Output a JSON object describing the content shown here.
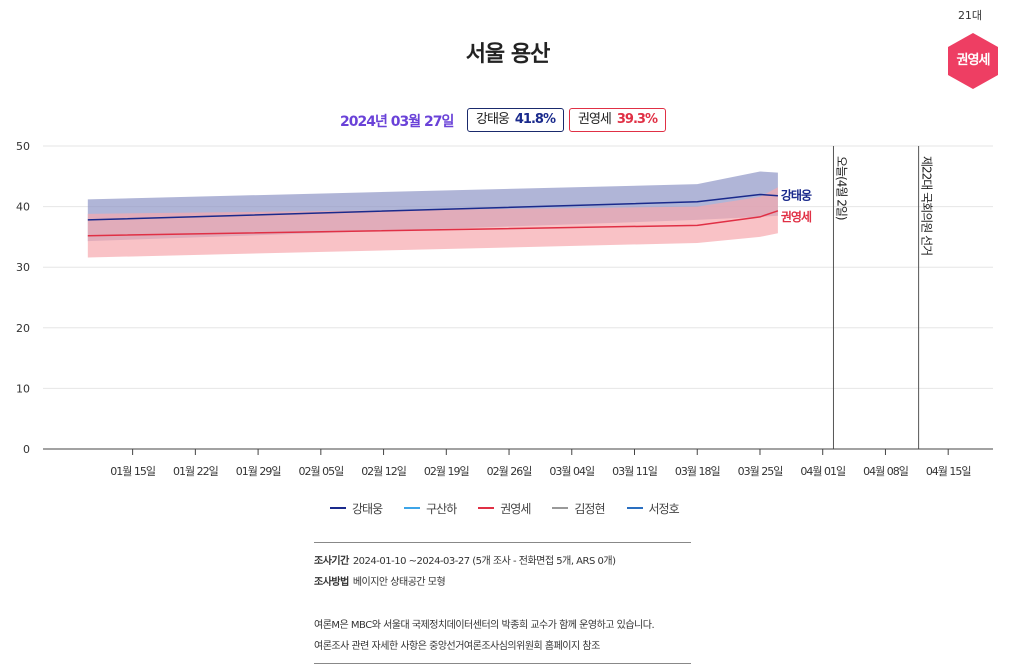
{
  "title": "서울 용산",
  "badge": {
    "term": "21대",
    "name": "권영세",
    "color": "#ee3e63"
  },
  "header": {
    "date": "2024년 03월 27일",
    "candidates": [
      {
        "name": "강태웅",
        "pct": "41.8%",
        "color": "#1a2a8c"
      },
      {
        "name": "권영세",
        "pct": "39.3%",
        "color": "#e03045"
      }
    ]
  },
  "chart_data": {
    "type": "line",
    "title": "서울 용산",
    "xlabel": "",
    "ylabel": "",
    "ylim": [
      0,
      50
    ],
    "yticks": [
      0,
      10,
      20,
      30,
      40,
      50
    ],
    "xlim_days": [
      -5,
      101
    ],
    "x_ticks": [
      {
        "day": 5,
        "label": "01월 15일"
      },
      {
        "day": 12,
        "label": "01월 22일"
      },
      {
        "day": 19,
        "label": "01월 29일"
      },
      {
        "day": 26,
        "label": "02월 05일"
      },
      {
        "day": 33,
        "label": "02월 12일"
      },
      {
        "day": 40,
        "label": "02월 19일"
      },
      {
        "day": 47,
        "label": "02월 26일"
      },
      {
        "day": 54,
        "label": "03월 04일"
      },
      {
        "day": 61,
        "label": "03월 11일"
      },
      {
        "day": 68,
        "label": "03월 18일"
      },
      {
        "day": 75,
        "label": "03월 25일"
      },
      {
        "day": 82,
        "label": "04월 01일"
      },
      {
        "day": 89,
        "label": "04월 08일"
      },
      {
        "day": 96,
        "label": "04월 15일"
      }
    ],
    "vertical_markers": [
      {
        "day": 83.2,
        "label": "오늘(4월 2일)"
      },
      {
        "day": 92.7,
        "label": "제22대 국회의원 선거"
      }
    ],
    "series": [
      {
        "name": "강태웅",
        "color": "#1a2a8c",
        "band_color": "#8f96c6",
        "x": [
          0,
          68,
          75,
          77
        ],
        "values": [
          37.8,
          40.8,
          42.0,
          41.8
        ],
        "upper": [
          41.2,
          43.7,
          45.8,
          45.6
        ],
        "lower": [
          34.3,
          37.8,
          38.3,
          38.5
        ]
      },
      {
        "name": "권영세",
        "color": "#e03045",
        "band_color": "#f7a8ae",
        "x": [
          0,
          68,
          75,
          77
        ],
        "values": [
          35.2,
          36.9,
          38.3,
          39.3
        ],
        "upper": [
          38.8,
          40.0,
          41.6,
          43.2
        ],
        "lower": [
          31.6,
          34.0,
          35.0,
          35.6
        ]
      }
    ],
    "end_labels": [
      {
        "series": "강태웅",
        "text": "강태웅"
      },
      {
        "series": "권영세",
        "text": "권영세"
      }
    ],
    "legend": [
      {
        "name": "강태웅",
        "color": "#1a2a8c"
      },
      {
        "name": "구산하",
        "color": "#3da5e8"
      },
      {
        "name": "권영세",
        "color": "#e03045"
      },
      {
        "name": "김정현",
        "color": "#999999"
      },
      {
        "name": "서정호",
        "color": "#2a6fc0"
      }
    ]
  },
  "footer": {
    "period_label": "조사기간",
    "period_value": "2024-01-10 ~2024-03-27 (5개 조사 - 전화면접 5개, ARS 0개)",
    "method_label": "조사방법",
    "method_value": "베이지안 상태공간 모형",
    "note1": "여론M은 MBC와 서울대 국제정치데이터센터의 박종희 교수가 함께 운영하고 있습니다.",
    "note2": "여론조사 관련 자세한 사항은 중앙선거여론조사심의위원회 홈페이지 참조"
  }
}
